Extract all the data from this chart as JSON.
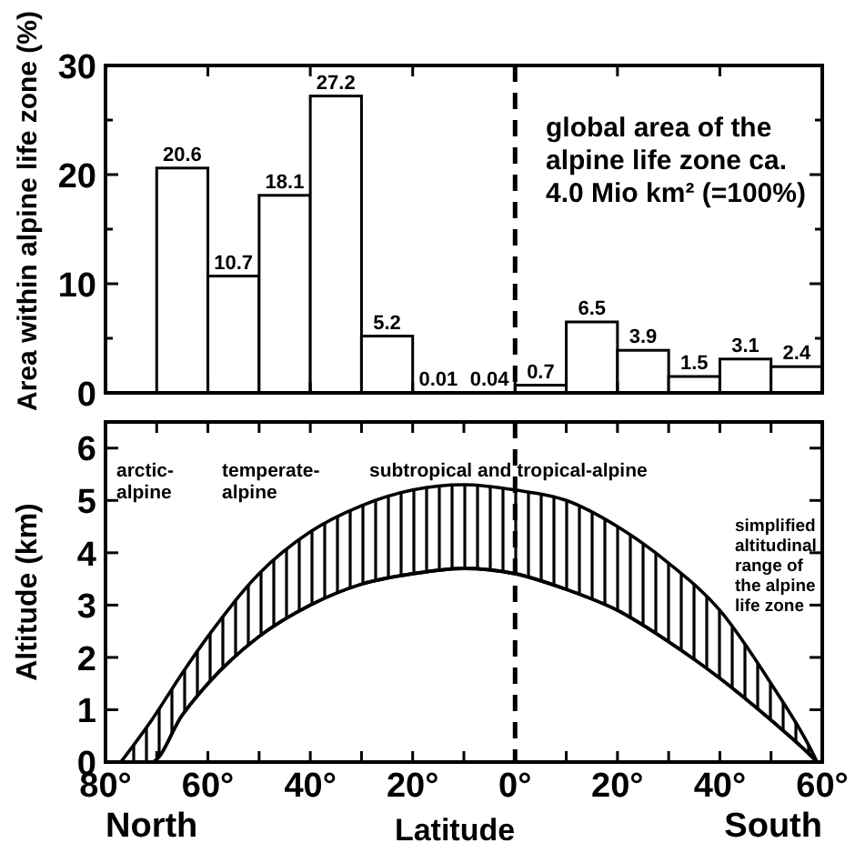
{
  "chart_data": [
    {
      "type": "histogram",
      "ylabel": "Area within alpine life zone (%)",
      "bins": [
        70,
        60,
        50,
        40,
        30,
        20,
        10,
        0,
        -10,
        -20,
        -30,
        -40,
        -50,
        -60
      ],
      "values": [
        20.6,
        10.7,
        18.1,
        27.2,
        5.2,
        0.01,
        0.04,
        0.7,
        6.5,
        3.9,
        1.5,
        3.1,
        2.4
      ],
      "color": "#000000",
      "data_labels": true,
      "xlim": [
        80,
        -60
      ],
      "xticks": [
        {
          "value": 80,
          "label": null
        },
        {
          "value": 60,
          "label": null
        },
        {
          "value": 40,
          "label": null
        },
        {
          "value": 20,
          "label": null
        },
        {
          "value": 0,
          "label": null
        },
        {
          "value": -20,
          "label": null
        },
        {
          "value": -40,
          "label": null
        },
        {
          "value": -60,
          "label": null
        }
      ],
      "ylim": [
        0,
        30
      ],
      "yticks": [
        0,
        {
          "value": 5,
          "label": null
        },
        10,
        {
          "value": 15,
          "label": null
        },
        20,
        {
          "value": 25,
          "label": null
        },
        30
      ],
      "tick_labels": "y",
      "ref_lines": [
        {
          "axis": "x",
          "value": 0,
          "line_style": "dashed",
          "color": "#000000"
        }
      ],
      "annotations": [
        "global area of the\nalpine life zone ca.\n4.0 Mio km² (=100%)"
      ]
    },
    {
      "type": "area",
      "xlabel": "Latitude",
      "ylabel": "Altitude (km)",
      "stacked": true,
      "x": [
        77,
        71,
        65,
        60,
        50,
        40,
        30,
        20,
        10,
        0,
        -10,
        -20,
        -30,
        -40,
        -50,
        -58,
        -59
      ],
      "series": [
        {
          "type": "area",
          "color": "#000000",
          "values": [
            0,
            0,
            0.9,
            1.5,
            2.4,
            3.0,
            3.4,
            3.6,
            3.7,
            3.6,
            3.3,
            2.9,
            2.3,
            1.6,
            0.8,
            0.1,
            0
          ]
        },
        {
          "type": "area",
          "color": "#000000",
          "values": [
            0,
            0.8,
            0.8,
            0.9,
            1.2,
            1.4,
            1.5,
            1.6,
            1.6,
            1.6,
            1.7,
            1.6,
            1.5,
            1.3,
            0.7,
            0.1,
            0
          ]
        }
      ],
      "xlim": [
        80,
        -60
      ],
      "xticks": [
        {
          "value": 80,
          "label": "80°"
        },
        {
          "value": 70,
          "label": null
        },
        {
          "value": 60,
          "label": "60°"
        },
        {
          "value": 50,
          "label": null
        },
        {
          "value": 40,
          "label": "40°"
        },
        {
          "value": 30,
          "label": null
        },
        {
          "value": 20,
          "label": "20°"
        },
        {
          "value": 10,
          "label": null
        },
        {
          "value": 0,
          "label": "0°"
        },
        {
          "value": -10,
          "label": null
        },
        {
          "value": -20,
          "label": "20°"
        },
        {
          "value": -30,
          "label": null
        },
        {
          "value": -40,
          "label": "40°"
        },
        {
          "value": -50,
          "label": null
        },
        {
          "value": -60,
          "label": "60°"
        }
      ],
      "ylim": [
        0,
        6.5
      ],
      "yticks": [
        0,
        1,
        2,
        3,
        4,
        5,
        6
      ],
      "ref_lines": [
        {
          "axis": "x",
          "value": 0,
          "line_style": "dashed",
          "color": "#000000"
        }
      ],
      "annotations": [
        "arctic-\nalpine",
        "temperate-\nalpine",
        "subtropical and tropical-alpine",
        "simplified\naltitudinal\nrange of\nthe alpine\nlife zone",
        "North",
        "South"
      ]
    }
  ]
}
